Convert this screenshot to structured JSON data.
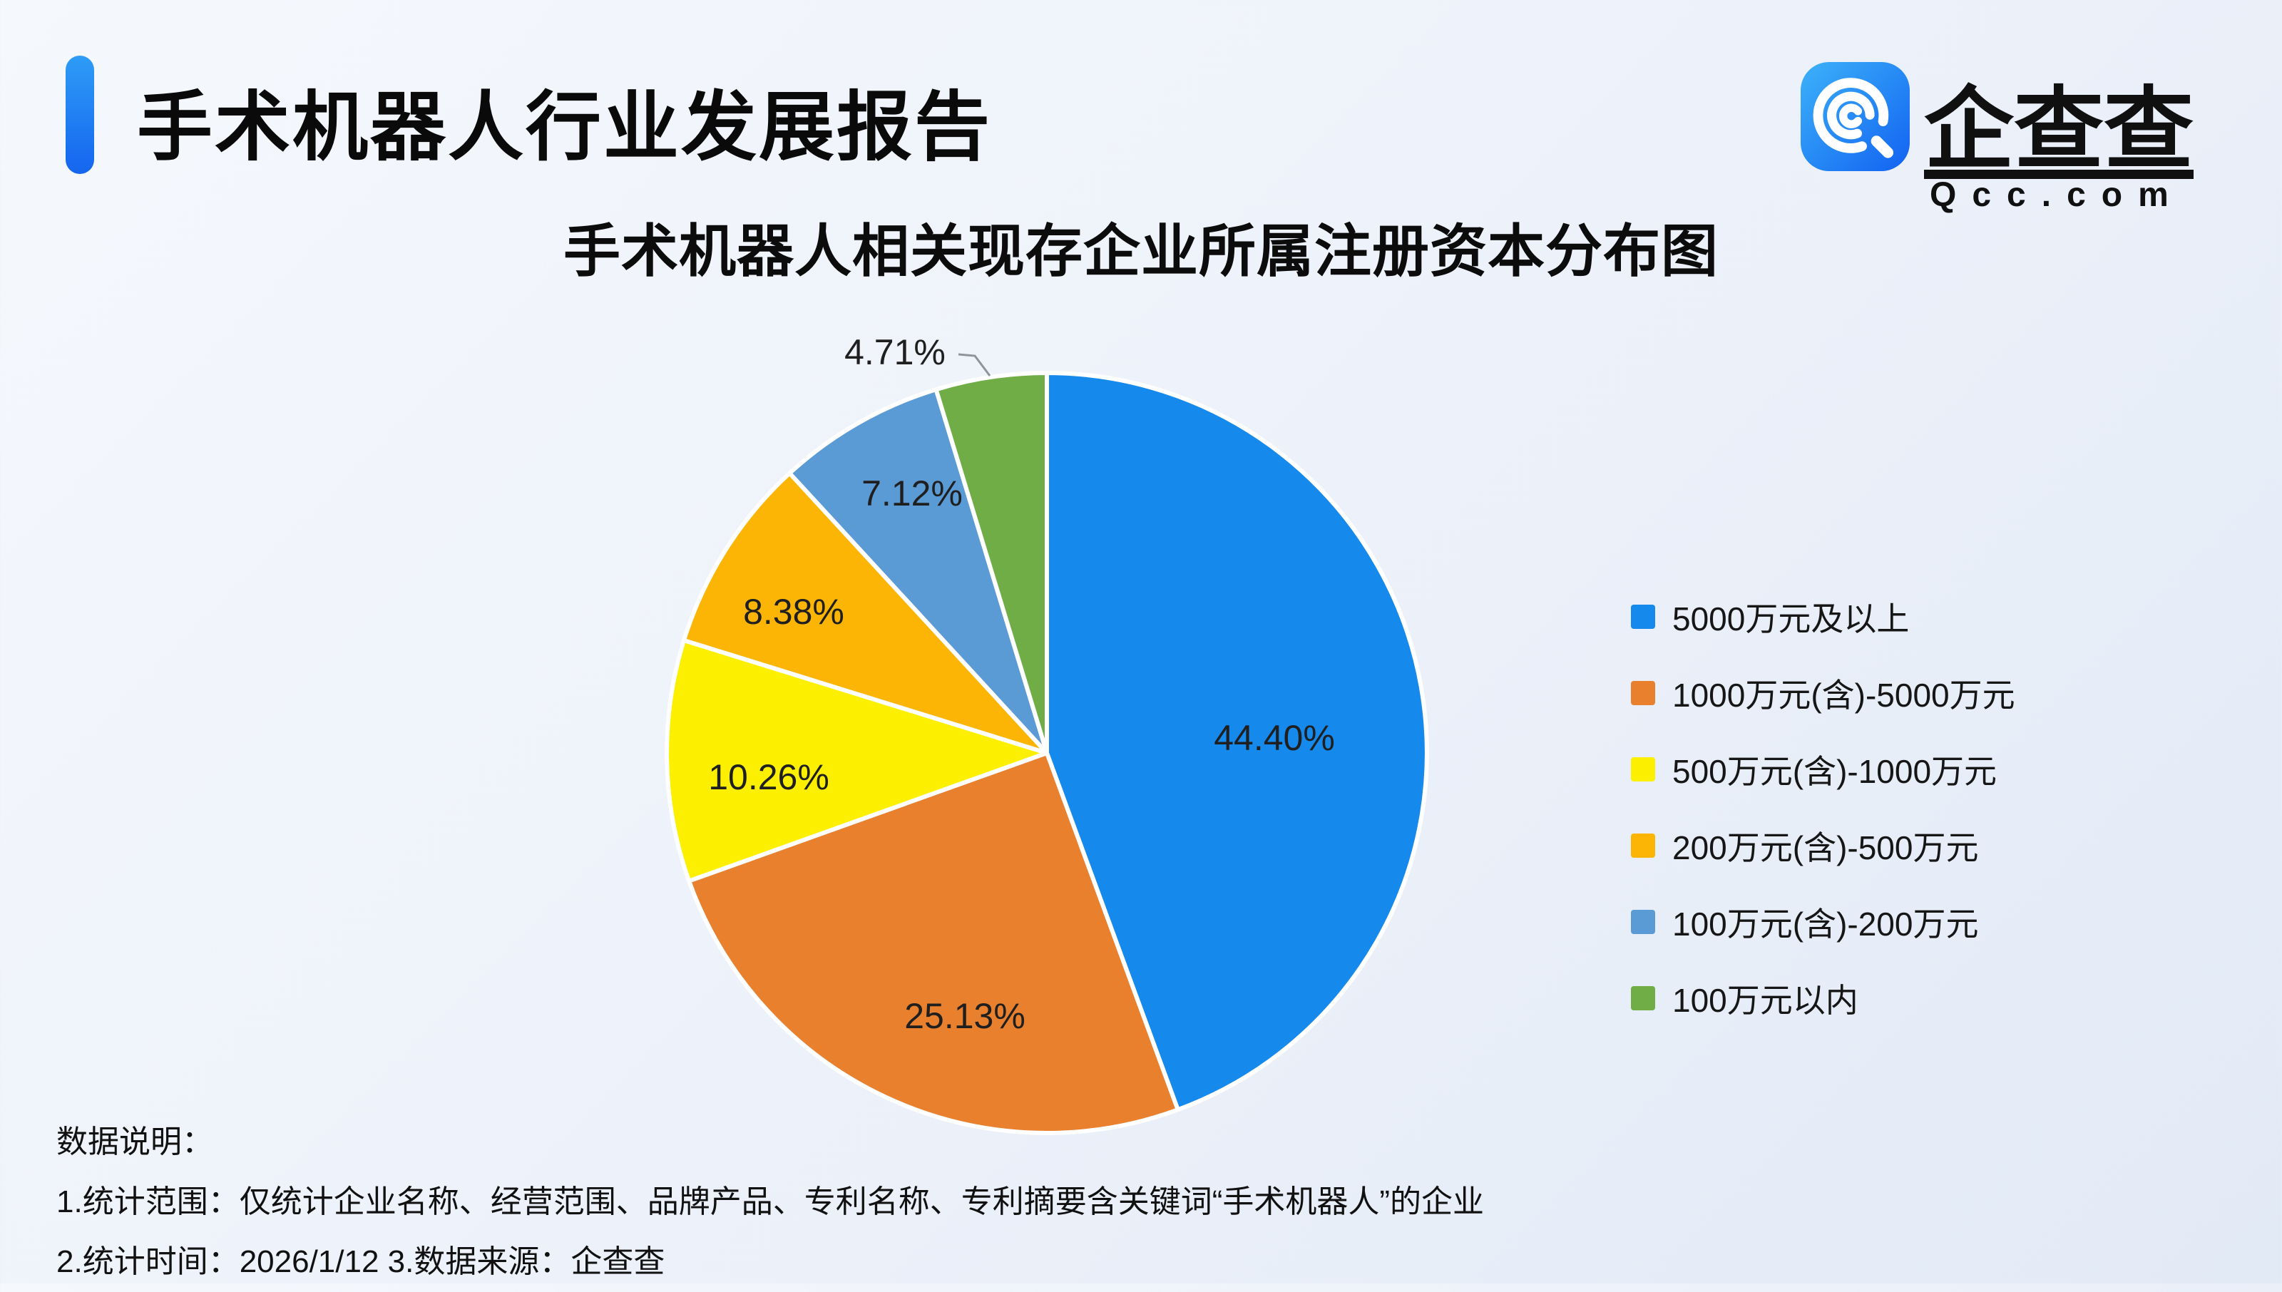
{
  "header": {
    "title": "手术机器人行业发展报告"
  },
  "logo": {
    "brand": "企查查",
    "domain": "Qcc.com",
    "icon": "qcc-magnifier-q-icon",
    "icon_gradient": [
      "#3CB2F9",
      "#1262F1"
    ]
  },
  "chart_data": {
    "type": "pie",
    "title": "手术机器人相关现存企业所属注册资本分布图",
    "categories": [
      "5000万元及以上",
      "1000万元(含)-5000万元",
      "500万元(含)-1000万元",
      "200万元(含)-500万元",
      "100万元(含)-200万元",
      "100万元以内"
    ],
    "values": [
      44.4,
      25.13,
      10.26,
      8.38,
      7.12,
      4.71
    ],
    "labels": [
      "44.40%",
      "25.13%",
      "10.26%",
      "8.38%",
      "7.12%",
      "4.71%"
    ],
    "colors": [
      "#1589EC",
      "#E8802D",
      "#FCF000",
      "#FCB505",
      "#5B9BD5",
      "#70AD47"
    ],
    "unit": "percent",
    "legend_position": "right",
    "label_layout": "inside-except-smallest-outside-with-leader",
    "start_angle": "12-oclock-clockwise"
  },
  "notes": {
    "heading": "数据说明：",
    "line1": "1.统计范围：仅统计企业名称、经营范围、品牌产品、专利名称、专利摘要含关键词“手术机器人”的企业",
    "line2": "2.统计时间：2026/1/12  3.数据来源：企查查"
  }
}
